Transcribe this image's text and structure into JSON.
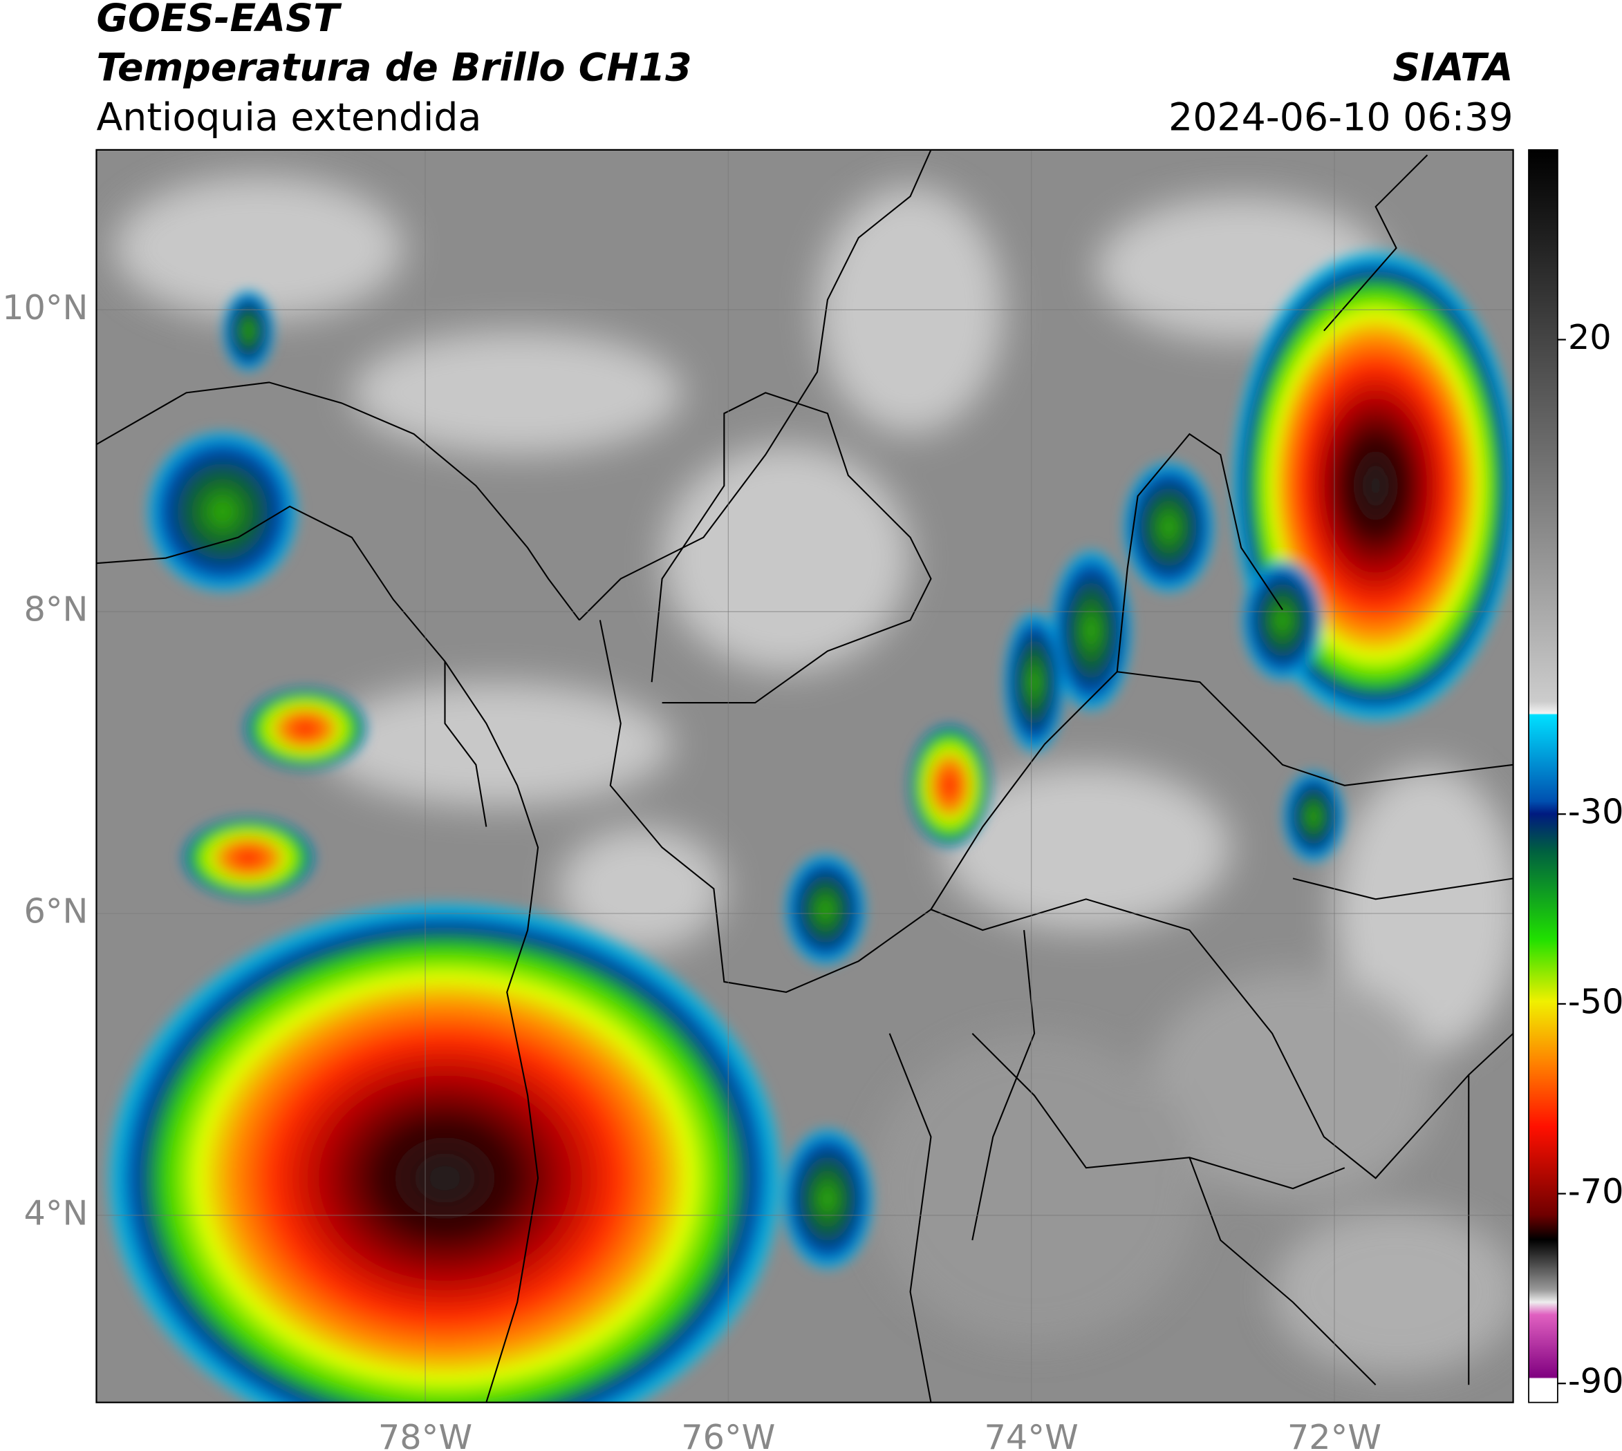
{
  "header": {
    "satellite": "GOES-EAST",
    "product": "Temperatura de Brillo CH13",
    "region": "Antioquia extendida",
    "institution": "SIATA",
    "timestamp": "2024-06-10 06:39"
  },
  "map": {
    "lat_range": [
      2.76,
      11.06
    ],
    "lon_range": [
      -80.17,
      -70.82
    ],
    "grid": true,
    "lat_ticks": [
      {
        "value": 10,
        "label": "10°N"
      },
      {
        "value": 8,
        "label": "8°N"
      },
      {
        "value": 6,
        "label": "6°N"
      },
      {
        "value": 4,
        "label": "4°N"
      }
    ],
    "lon_ticks": [
      {
        "value": -78,
        "label": "78°W"
      },
      {
        "value": -76,
        "label": "76°W"
      },
      {
        "value": -74,
        "label": "74°W"
      },
      {
        "value": -72,
        "label": "72°W"
      }
    ]
  },
  "colorbar": {
    "range": [
      -92,
      40
    ],
    "ticks": [
      20,
      -30,
      -50,
      -70,
      -90
    ]
  }
}
